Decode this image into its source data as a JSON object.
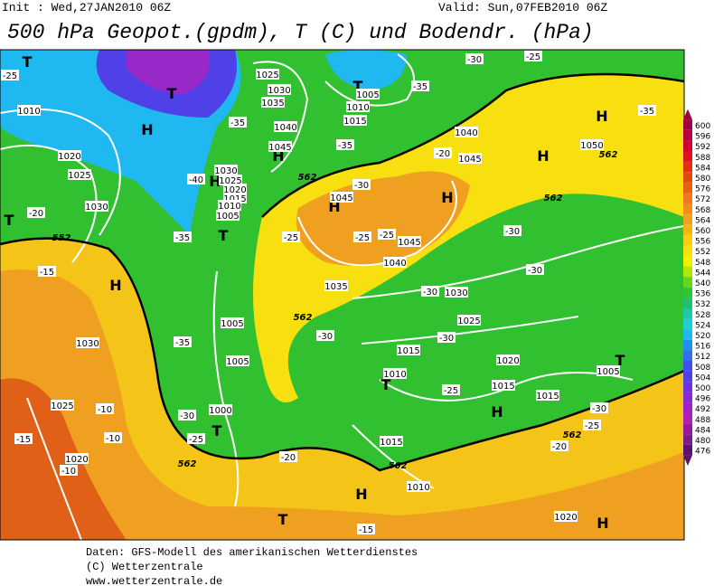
{
  "header": {
    "init": "Init : Wed,27JAN2010 06Z",
    "valid": "Valid: Sun,07FEB2010 06Z",
    "title": "500 hPa Geopot.(gpdm), T (C) und Bodendr. (hPa)"
  },
  "map": {
    "centers": [
      "T",
      "T",
      "H",
      "H",
      "T",
      "T",
      "H",
      "T",
      "T",
      "H",
      "H",
      "H",
      "H",
      "H",
      "T",
      "H",
      "H",
      "T",
      "H",
      "T"
    ],
    "isobars": [
      "1010",
      "1020",
      "1025",
      "1030",
      "1030",
      "1025",
      "1020",
      "1025",
      "1030",
      "1035",
      "1040",
      "1045",
      "1030",
      "1025",
      "1020",
      "1015",
      "1010",
      "1005",
      "1005",
      "1005",
      "1000",
      "1005",
      "1010",
      "1015",
      "1040",
      "1045",
      "1045",
      "1045",
      "1040",
      "1035",
      "1030",
      "1025",
      "1015",
      "1010",
      "1020",
      "1015",
      "1015",
      "1015",
      "1010",
      "1005",
      "1050",
      "1020"
    ],
    "temperatures": [
      "-25",
      "-35",
      "-40",
      "-35",
      "-35",
      "-30",
      "-25",
      "-35",
      "-30",
      "-20",
      "-25",
      "-25",
      "-25",
      "-20",
      "-15",
      "-35",
      "-35",
      "-30",
      "-25",
      "-10",
      "-10",
      "-10",
      "-15",
      "-30",
      "-30",
      "-30",
      "-30",
      "-30",
      "-25",
      "-25",
      "-30",
      "-20",
      "-20",
      "-15"
    ],
    "contours": [
      "562",
      "562",
      "562",
      "562",
      "562",
      "562",
      "562",
      "552"
    ]
  },
  "colorbar": {
    "levels": [
      600,
      596,
      592,
      588,
      584,
      580,
      576,
      572,
      568,
      564,
      560,
      556,
      552,
      548,
      544,
      540,
      536,
      532,
      528,
      524,
      520,
      516,
      512,
      508,
      504,
      500,
      496,
      492,
      488,
      484,
      480,
      476
    ],
    "colors": [
      "#a00040",
      "#b80040",
      "#d00030",
      "#e01020",
      "#e03010",
      "#e04a10",
      "#e86010",
      "#f07820",
      "#f08c20",
      "#f0a020",
      "#f4b418",
      "#f8cc10",
      "#f8e010",
      "#f0f000",
      "#b0e800",
      "#60d820",
      "#30c830",
      "#20c070",
      "#20c8a8",
      "#20d0d0",
      "#20b8f0",
      "#2090f0",
      "#3070f0",
      "#4050f0",
      "#5040e8",
      "#7030e0",
      "#8828d0",
      "#a020c8",
      "#b020b0",
      "#9818a0",
      "#801890",
      "#601070"
    ]
  },
  "footer": {
    "lines": [
      "Daten: GFS-Modell des amerikanischen Wetterdienstes",
      "(C) Wetterzentrale",
      "www.wetterzentrale.de"
    ]
  }
}
